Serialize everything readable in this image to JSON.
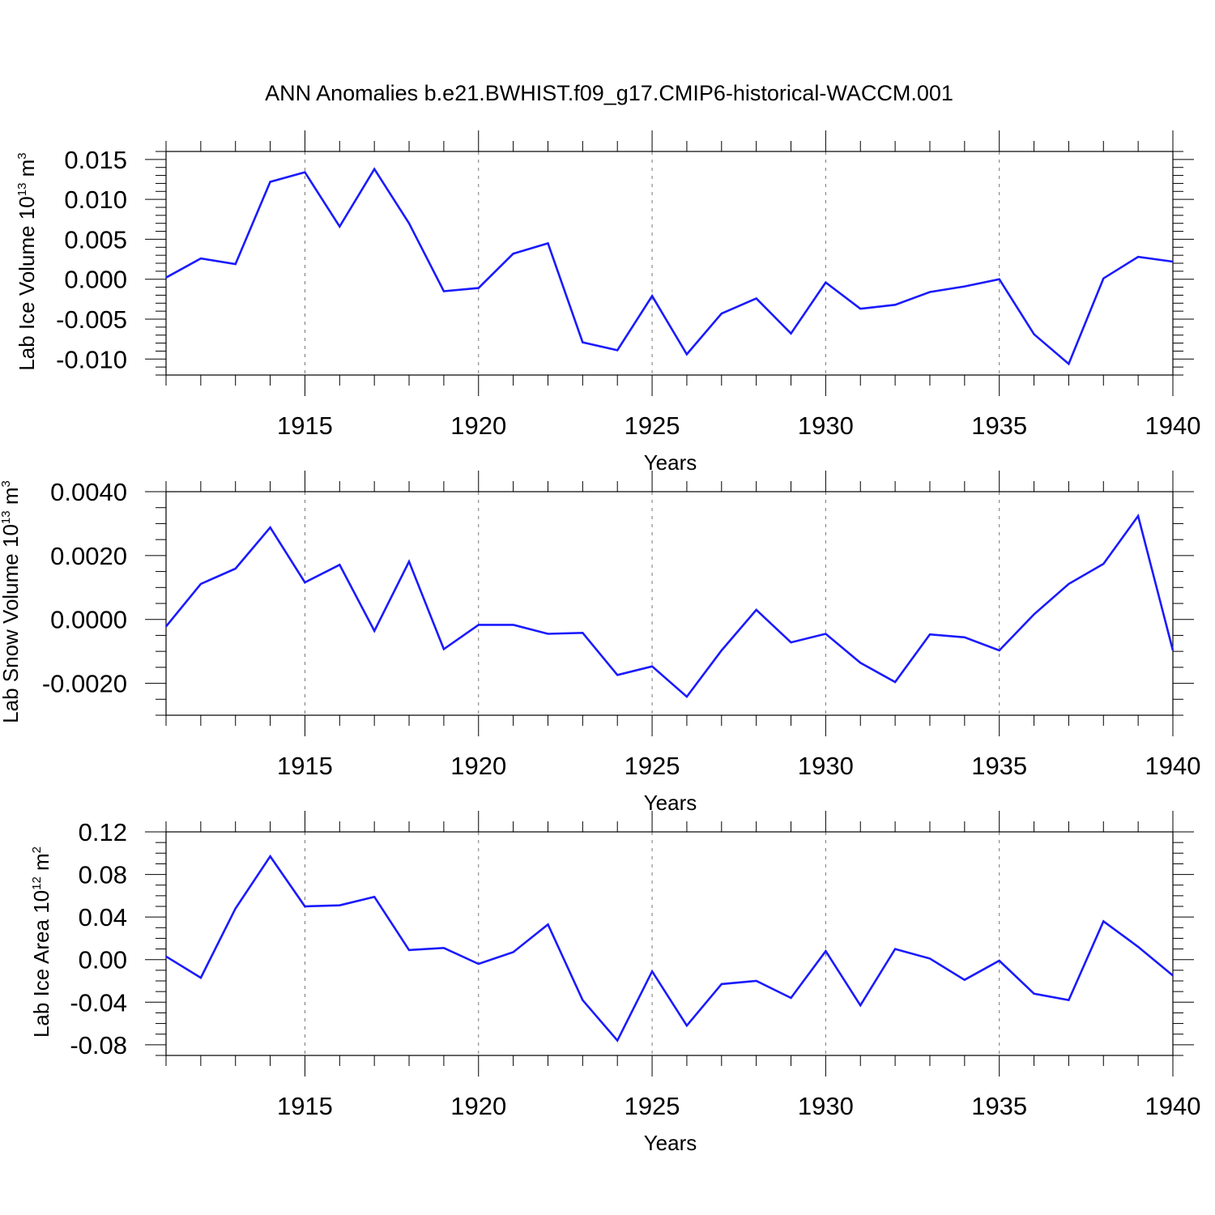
{
  "title": "ANN Anomalies b.e21.BWHIST.f09_g17.CMIP6-historical-WACCM.001",
  "line_color": "#1a1aff",
  "chart_data": [
    {
      "type": "line",
      "ylabel": "Lab Ice Volume 10",
      "ylabel_exp": "13",
      "ylabel_unit": " m",
      "ylabel_unit_exp": "3",
      "xlabel": "Years",
      "xlim": [
        1911,
        1940
      ],
      "ylim": [
        -0.012,
        0.016
      ],
      "yticks": [
        0.015,
        0.01,
        0.005,
        0.0,
        -0.005,
        -0.01
      ],
      "ytick_labels": [
        "0.015",
        "0.010",
        "0.005",
        "0.000",
        "-0.005",
        "-0.010"
      ],
      "y_minor_step": 0.001,
      "xticks": [
        1915,
        1920,
        1925,
        1930,
        1935,
        1940
      ],
      "xtick_labels": [
        "1915",
        "1920",
        "1925",
        "1930",
        "1935",
        "1940"
      ],
      "grid": "vertical dashed at major x ticks",
      "x": [
        1911,
        1912,
        1913,
        1914,
        1915,
        1916,
        1917,
        1918,
        1919,
        1920,
        1921,
        1922,
        1923,
        1924,
        1925,
        1926,
        1927,
        1928,
        1929,
        1930,
        1931,
        1932,
        1933,
        1934,
        1935,
        1936,
        1937,
        1938,
        1939,
        1940
      ],
      "values": [
        0.0002,
        0.0026,
        0.0019,
        0.0122,
        0.0134,
        0.0066,
        0.0138,
        0.007,
        -0.0015,
        -0.0011,
        0.0032,
        0.0045,
        -0.0079,
        -0.0089,
        -0.0021,
        -0.0094,
        -0.0043,
        -0.0024,
        -0.0068,
        -0.0004,
        -0.0037,
        -0.0032,
        -0.0016,
        -0.0009,
        0.0,
        -0.0069,
        -0.0106,
        0.0001,
        0.0028,
        0.0022
      ]
    },
    {
      "type": "line",
      "ylabel": "Lab Snow Volume 10",
      "ylabel_exp": "13",
      "ylabel_unit": " m",
      "ylabel_unit_exp": "3",
      "xlabel": "Years",
      "xlim": [
        1911,
        1940
      ],
      "ylim": [
        -0.003,
        0.004
      ],
      "yticks": [
        0.004,
        0.002,
        0.0,
        -0.002
      ],
      "ytick_labels": [
        "0.0040",
        "0.0020",
        "0.0000",
        "-0.0020"
      ],
      "y_minor_step": 0.0005,
      "xticks": [
        1915,
        1920,
        1925,
        1930,
        1935,
        1940
      ],
      "xtick_labels": [
        "1915",
        "1920",
        "1925",
        "1930",
        "1935",
        "1940"
      ],
      "grid": "vertical dashed at major x ticks",
      "x": [
        1911,
        1912,
        1913,
        1914,
        1915,
        1916,
        1917,
        1918,
        1919,
        1920,
        1921,
        1922,
        1923,
        1924,
        1925,
        1926,
        1927,
        1928,
        1929,
        1930,
        1931,
        1932,
        1933,
        1934,
        1935,
        1936,
        1937,
        1938,
        1939,
        1940
      ],
      "values": [
        -0.00022,
        0.00111,
        0.00159,
        0.00288,
        0.00116,
        0.00171,
        -0.00036,
        0.00181,
        -0.00093,
        -0.00017,
        -0.00017,
        -0.00045,
        -0.00042,
        -0.00174,
        -0.00147,
        -0.00242,
        -0.00097,
        0.0003,
        -0.00072,
        -0.00045,
        -0.00136,
        -0.00196,
        -0.00047,
        -0.00056,
        -0.00097,
        0.00016,
        0.00111,
        0.00174,
        0.00324,
        -0.00097
      ]
    },
    {
      "type": "line",
      "ylabel": "Lab Ice Area 10",
      "ylabel_exp": "12",
      "ylabel_unit": " m",
      "ylabel_unit_exp": "2",
      "xlabel": "Years",
      "xlim": [
        1911,
        1940
      ],
      "ylim": [
        -0.09,
        0.12
      ],
      "yticks": [
        0.12,
        0.08,
        0.04,
        0.0,
        -0.04,
        -0.08
      ],
      "ytick_labels": [
        "0.12",
        "0.08",
        "0.04",
        "0.00",
        "-0.04",
        "-0.08"
      ],
      "y_minor_step": 0.01,
      "xticks": [
        1915,
        1920,
        1925,
        1930,
        1935,
        1940
      ],
      "xtick_labels": [
        "1915",
        "1920",
        "1925",
        "1930",
        "1935",
        "1940"
      ],
      "grid": "vertical dashed at major x ticks",
      "x": [
        1911,
        1912,
        1913,
        1914,
        1915,
        1916,
        1917,
        1918,
        1919,
        1920,
        1921,
        1922,
        1923,
        1924,
        1925,
        1926,
        1927,
        1928,
        1929,
        1930,
        1931,
        1932,
        1933,
        1934,
        1935,
        1936,
        1937,
        1938,
        1939,
        1940
      ],
      "values": [
        0.003,
        -0.017,
        0.048,
        0.097,
        0.05,
        0.051,
        0.059,
        0.009,
        0.011,
        -0.004,
        0.007,
        0.033,
        -0.038,
        -0.076,
        -0.011,
        -0.062,
        -0.023,
        -0.02,
        -0.036,
        0.008,
        -0.043,
        0.01,
        0.001,
        -0.019,
        -0.001,
        -0.032,
        -0.038,
        0.036,
        0.012,
        -0.015
      ]
    }
  ]
}
